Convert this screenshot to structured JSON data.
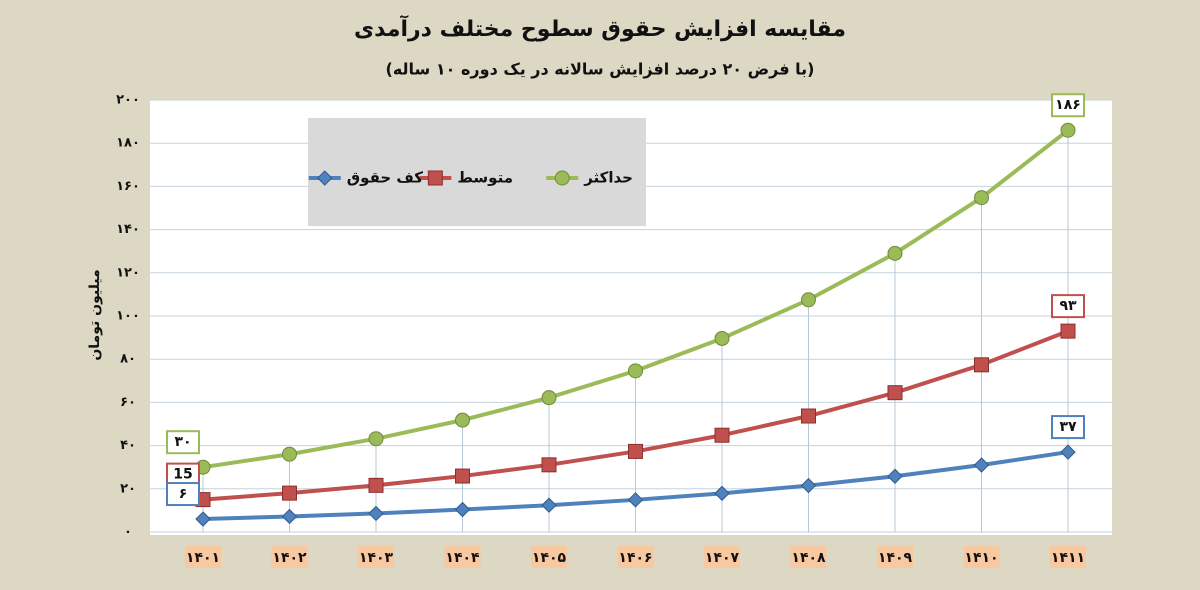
{
  "chart_data": {
    "type": "line",
    "title": "مقایسه افزایش حقوق سطوح مختلف درآمدی",
    "subtitle": "(با فرض ۲۰ درصد افزایش سالانه در یک دوره ۱۰ ساله)",
    "y_label": "میلیون تومان",
    "categories": [
      "۱۴۰۱",
      "۱۴۰۲",
      "۱۴۰۳",
      "۱۴۰۴",
      "۱۴۰۵",
      "۱۴۰۶",
      "۱۴۰۷",
      "۱۴۰۸",
      "۱۴۰۹",
      "۱۴۱۰",
      "۱۴۱۱"
    ],
    "series": [
      {
        "name": "حداکثر",
        "color": "#9bbb59",
        "marker": "circle",
        "values": [
          30,
          36,
          43.2,
          51.8,
          62.2,
          74.6,
          89.6,
          107.5,
          129,
          154.8,
          186
        ],
        "value_labels": [
          "۳۰",
          null,
          null,
          null,
          null,
          null,
          null,
          null,
          null,
          null,
          "۱۸۶"
        ]
      },
      {
        "name": "متوسط",
        "color": "#c0504d",
        "marker": "square",
        "values": [
          15,
          18,
          21.6,
          25.9,
          31.1,
          37.3,
          44.8,
          53.7,
          64.5,
          77.4,
          93
        ],
        "value_labels": [
          "15",
          null,
          null,
          null,
          null,
          null,
          null,
          null,
          null,
          null,
          "۹۳"
        ]
      },
      {
        "name": "کف حقوق",
        "color": "#4f81bd",
        "marker": "diamond",
        "values": [
          6,
          7.2,
          8.6,
          10.4,
          12.4,
          14.9,
          17.9,
          21.5,
          25.8,
          31,
          37
        ],
        "value_labels": [
          "۶",
          null,
          null,
          null,
          null,
          null,
          null,
          null,
          null,
          null,
          "۳۷"
        ]
      }
    ],
    "ylim": [
      0,
      200
    ],
    "yticks": [
      {
        "value": 0,
        "label": "۰"
      },
      {
        "value": 20,
        "label": "۲۰"
      },
      {
        "value": 40,
        "label": "۴۰"
      },
      {
        "value": 60,
        "label": "۶۰"
      },
      {
        "value": 80,
        "label": "۸۰"
      },
      {
        "value": 100,
        "label": "۱۰۰"
      },
      {
        "value": 120,
        "label": "۱۲۰"
      },
      {
        "value": 140,
        "label": "۱۴۰"
      },
      {
        "value": 160,
        "label": "۱۶۰"
      },
      {
        "value": 180,
        "label": "۱۸۰"
      },
      {
        "value": 200,
        "label": "۲۰۰"
      }
    ],
    "grid": true,
    "legend": "upper left"
  }
}
